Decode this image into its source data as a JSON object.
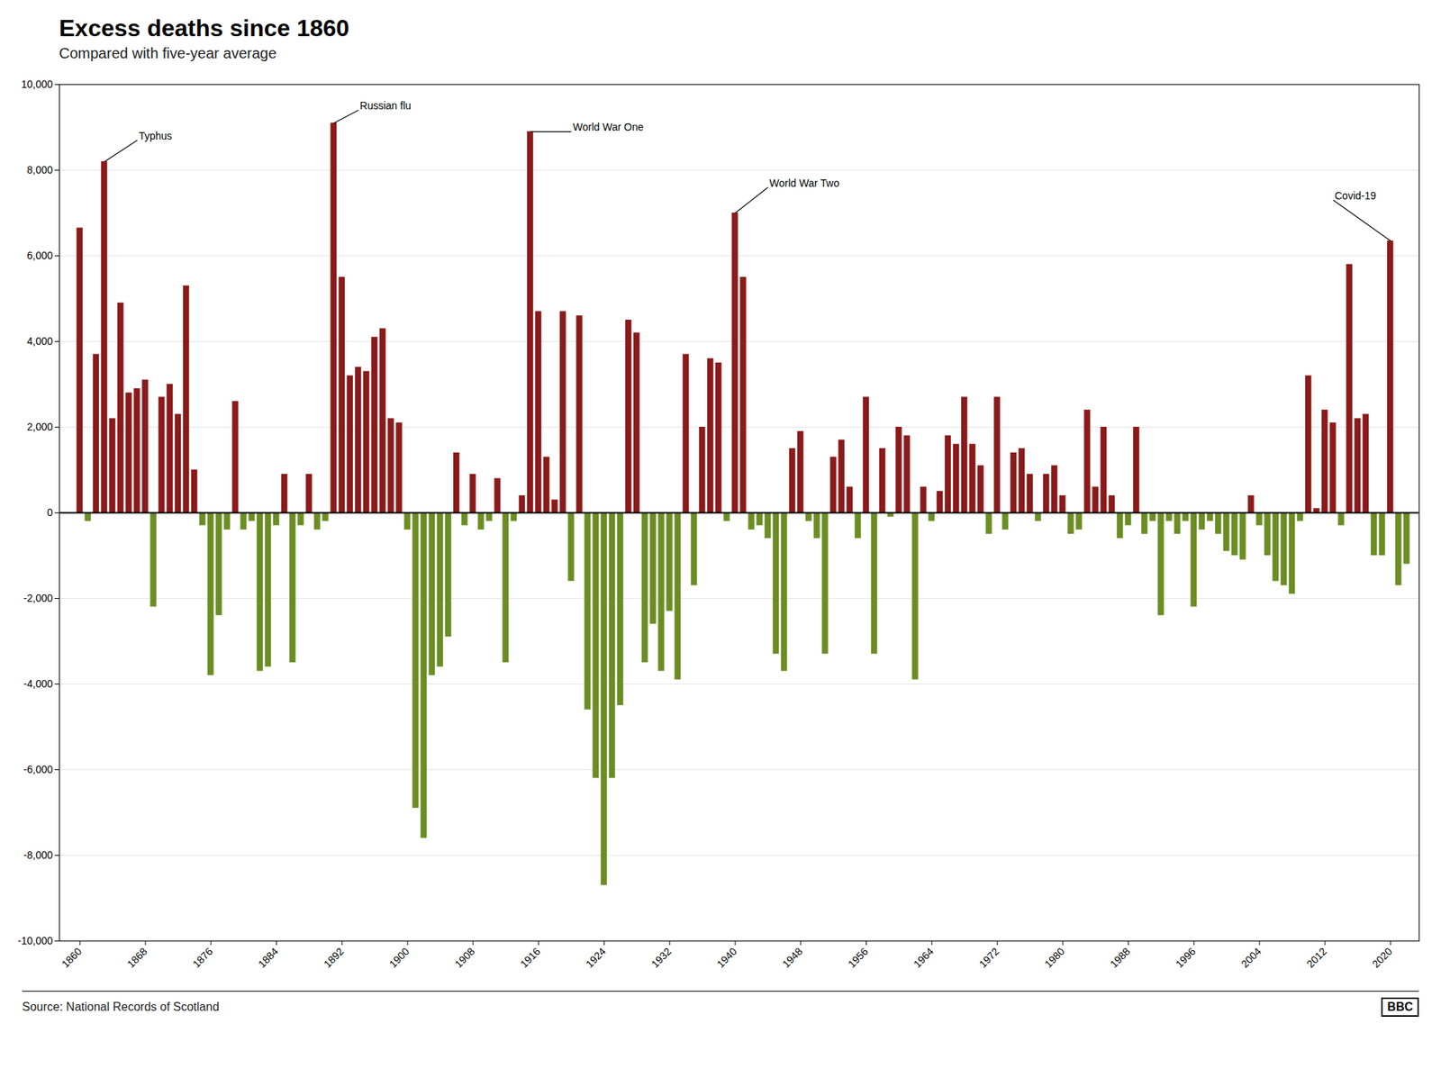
{
  "chart_data": {
    "type": "bar",
    "title": "Excess deaths since 1860",
    "subtitle": "Compared with five-year average",
    "source": "Source: National Records of Scotland",
    "credit": "BBC",
    "x": [
      1860,
      1861,
      1862,
      1863,
      1864,
      1865,
      1866,
      1867,
      1868,
      1869,
      1870,
      1871,
      1872,
      1873,
      1874,
      1875,
      1876,
      1877,
      1878,
      1879,
      1880,
      1881,
      1882,
      1883,
      1884,
      1885,
      1886,
      1887,
      1888,
      1889,
      1890,
      1891,
      1892,
      1893,
      1894,
      1895,
      1896,
      1897,
      1898,
      1899,
      1900,
      1901,
      1902,
      1903,
      1904,
      1905,
      1906,
      1907,
      1908,
      1909,
      1910,
      1911,
      1912,
      1913,
      1914,
      1915,
      1916,
      1917,
      1918,
      1919,
      1920,
      1921,
      1922,
      1923,
      1924,
      1925,
      1926,
      1927,
      1928,
      1929,
      1930,
      1931,
      1932,
      1933,
      1934,
      1935,
      1936,
      1937,
      1938,
      1939,
      1940,
      1941,
      1942,
      1943,
      1944,
      1945,
      1946,
      1947,
      1948,
      1949,
      1950,
      1951,
      1952,
      1953,
      1954,
      1955,
      1956,
      1957,
      1958,
      1959,
      1960,
      1961,
      1962,
      1963,
      1964,
      1965,
      1966,
      1967,
      1968,
      1969,
      1970,
      1971,
      1972,
      1973,
      1974,
      1975,
      1976,
      1977,
      1978,
      1979,
      1980,
      1981,
      1982,
      1983,
      1984,
      1985,
      1986,
      1987,
      1988,
      1989,
      1990,
      1991,
      1992,
      1993,
      1994,
      1995,
      1996,
      1997,
      1998,
      1999,
      2000,
      2001,
      2002,
      2003,
      2004,
      2005,
      2006,
      2007,
      2008,
      2009,
      2010,
      2011,
      2012,
      2013,
      2014,
      2015,
      2016,
      2017,
      2018,
      2019,
      2020,
      2021,
      2022
    ],
    "values": [
      6650,
      -200,
      3700,
      8200,
      2200,
      4900,
      2800,
      2900,
      3100,
      -2200,
      2700,
      3000,
      2300,
      5300,
      1000,
      -300,
      -3800,
      -2400,
      -400,
      2600,
      -400,
      -200,
      -3700,
      -3600,
      -300,
      900,
      -3500,
      -300,
      900,
      -400,
      -200,
      9100,
      5500,
      3200,
      3400,
      3300,
      4100,
      4300,
      2200,
      2100,
      -400,
      -6900,
      -7600,
      -3800,
      -3600,
      -2900,
      1400,
      -300,
      900,
      -400,
      -200,
      800,
      -3500,
      -200,
      400,
      8900,
      4700,
      1300,
      300,
      4700,
      -1600,
      4600,
      -4600,
      -6200,
      -8700,
      -6200,
      -4500,
      4500,
      4200,
      -3500,
      -2600,
      -3700,
      -2300,
      -3900,
      3700,
      -1700,
      2000,
      3600,
      3500,
      -200,
      7000,
      5500,
      -400,
      -300,
      -600,
      -3300,
      -3700,
      1500,
      1900,
      -200,
      -600,
      -3300,
      1300,
      1700,
      600,
      -600,
      2700,
      -3300,
      1500,
      -100,
      2000,
      1800,
      -3900,
      600,
      -200,
      500,
      1800,
      1600,
      2700,
      1600,
      1100,
      -500,
      2700,
      -400,
      1400,
      1500,
      900,
      -200,
      900,
      1100,
      400,
      -500,
      -400,
      2400,
      600,
      2000,
      400,
      -600,
      -300,
      2000,
      -500,
      -200,
      -2400,
      -200,
      -500,
      -200,
      -2200,
      -400,
      -200,
      -500,
      -900,
      -1000,
      -1100,
      400,
      -300,
      -1000,
      -1600,
      -1700,
      -1900,
      -200,
      3200,
      100,
      2400,
      2100,
      -300,
      5800,
      2200,
      2300,
      -1000,
      -1000,
      6350,
      -1700,
      -1200
    ],
    "colors": [
      "#8B1A1A",
      "#6B8E23",
      "#8B1A1A",
      "#8B1A1A",
      "#8B1A1A",
      "#8B1A1A",
      "#8B1A1A",
      "#8B1A1A",
      "#8B1A1A",
      "#6B8E23",
      "#8B1A1A",
      "#8B1A1A",
      "#8B1A1A",
      "#8B1A1A",
      "#8B1A1A",
      "#6B8E23",
      "#6B8E23",
      "#6B8E23",
      "#6B8E23",
      "#8B1A1A",
      "#6B8E23",
      "#6B8E23",
      "#6B8E23",
      "#6B8E23",
      "#6B8E23",
      "#8B1A1A",
      "#6B8E23",
      "#6B8E23",
      "#8B1A1A",
      "#6B8E23",
      "#6B8E23",
      "#8B1A1A",
      "#8B1A1A",
      "#8B1A1A",
      "#8B1A1A",
      "#8B1A1A",
      "#8B1A1A",
      "#8B1A1A",
      "#8B1A1A",
      "#8B1A1A",
      "#6B8E23",
      "#6B8E23",
      "#6B8E23",
      "#6B8E23",
      "#6B8E23",
      "#6B8E23",
      "#8B1A1A",
      "#6B8E23",
      "#8B1A1A",
      "#6B8E23",
      "#6B8E23",
      "#8B1A1A",
      "#6B8E23",
      "#6B8E23",
      "#8B1A1A",
      "#8B1A1A",
      "#8B1A1A",
      "#8B1A1A",
      "#8B1A1A",
      "#8B1A1A",
      "#6B8E23",
      "#8B1A1A",
      "#6B8E23",
      "#6B8E23",
      "#6B8E23",
      "#6B8E23",
      "#6B8E23",
      "#8B1A1A",
      "#8B1A1A",
      "#6B8E23",
      "#6B8E23",
      "#6B8E23",
      "#6B8E23",
      "#6B8E23",
      "#8B1A1A",
      "#6B8E23",
      "#8B1A1A",
      "#8B1A1A",
      "#8B1A1A",
      "#6B8E23",
      "#8B1A1A",
      "#8B1A1A",
      "#6B8E23",
      "#6B8E23",
      "#6B8E23",
      "#6B8E23",
      "#6B8E23",
      "#8B1A1A",
      "#8B1A1A",
      "#6B8E23",
      "#6B8E23",
      "#6B8E23",
      "#8B1A1A",
      "#8B1A1A",
      "#8B1A1A",
      "#6B8E23",
      "#8B1A1A",
      "#6B8E23",
      "#8B1A1A",
      "#6B8E23",
      "#8B1A1A",
      "#8B1A1A",
      "#6B8E23",
      "#8B1A1A",
      "#6B8E23",
      "#8B1A1A",
      "#8B1A1A",
      "#8B1A1A",
      "#8B1A1A",
      "#8B1A1A",
      "#8B1A1A",
      "#6B8E23",
      "#8B1A1A",
      "#6B8E23",
      "#8B1A1A",
      "#8B1A1A",
      "#8B1A1A",
      "#6B8E23",
      "#8B1A1A",
      "#8B1A1A",
      "#8B1A1A",
      "#6B8E23",
      "#6B8E23",
      "#8B1A1A",
      "#8B1A1A",
      "#8B1A1A",
      "#8B1A1A",
      "#6B8E23",
      "#6B8E23",
      "#8B1A1A",
      "#6B8E23",
      "#6B8E23",
      "#6B8E23",
      "#6B8E23",
      "#6B8E23",
      "#6B8E23",
      "#6B8E23",
      "#6B8E23",
      "#6B8E23",
      "#6B8E23",
      "#6B8E23",
      "#6B8E23",
      "#6B8E23",
      "#8B1A1A",
      "#6B8E23",
      "#6B8E23",
      "#6B8E23",
      "#6B8E23",
      "#6B8E23",
      "#6B8E23",
      "#8B1A1A",
      "#8B1A1A",
      "#8B1A1A",
      "#8B1A1A",
      "#6B8E23",
      "#8B1A1A",
      "#8B1A1A",
      "#8B1A1A",
      "#6B8E23",
      "#6B8E23",
      "#8B1A1A",
      "#6B8E23",
      "#6B8E23"
    ],
    "xlim": [
      1857.5,
      2023.5
    ],
    "xticks": [
      1860,
      1868,
      1876,
      1884,
      1892,
      1900,
      1908,
      1916,
      1924,
      1932,
      1940,
      1948,
      1956,
      1964,
      1972,
      1980,
      1988,
      1996,
      2004,
      2012,
      2020
    ],
    "ylim": [
      -10000,
      10000
    ],
    "yticks": [
      {
        "value": -10000,
        "label": "-10,000"
      },
      {
        "value": -8000,
        "label": "-8,000"
      },
      {
        "value": -6000,
        "label": "-6,000"
      },
      {
        "value": -4000,
        "label": "-4,000"
      },
      {
        "value": -2000,
        "label": "-2,000"
      },
      0,
      {
        "value": 2000,
        "label": "2,000"
      },
      {
        "value": 4000,
        "label": "4,000"
      },
      {
        "value": 6000,
        "label": "6,000"
      },
      {
        "value": 8000,
        "label": "8,000"
      },
      {
        "value": 10000,
        "label": "10,000"
      }
    ],
    "grid": true,
    "annotations": [
      {
        "text": "Typhus",
        "x": 1863,
        "y": 8200,
        "text_x": 1867,
        "text_y": 8700
      },
      {
        "text": "Russian flu",
        "x": 1891,
        "y": 9100,
        "text_x": 1894,
        "text_y": 9400
      },
      {
        "text": "World War One",
        "x": 1915,
        "y": 8900,
        "text_x": 1920,
        "text_y": 8900
      },
      {
        "text": "World War Two",
        "x": 1940,
        "y": 7000,
        "text_x": 1944,
        "text_y": 7600
      },
      {
        "text": "Covid-19",
        "x": 2020,
        "y": 6350,
        "text_x": 2013,
        "text_y": 7300
      }
    ]
  }
}
